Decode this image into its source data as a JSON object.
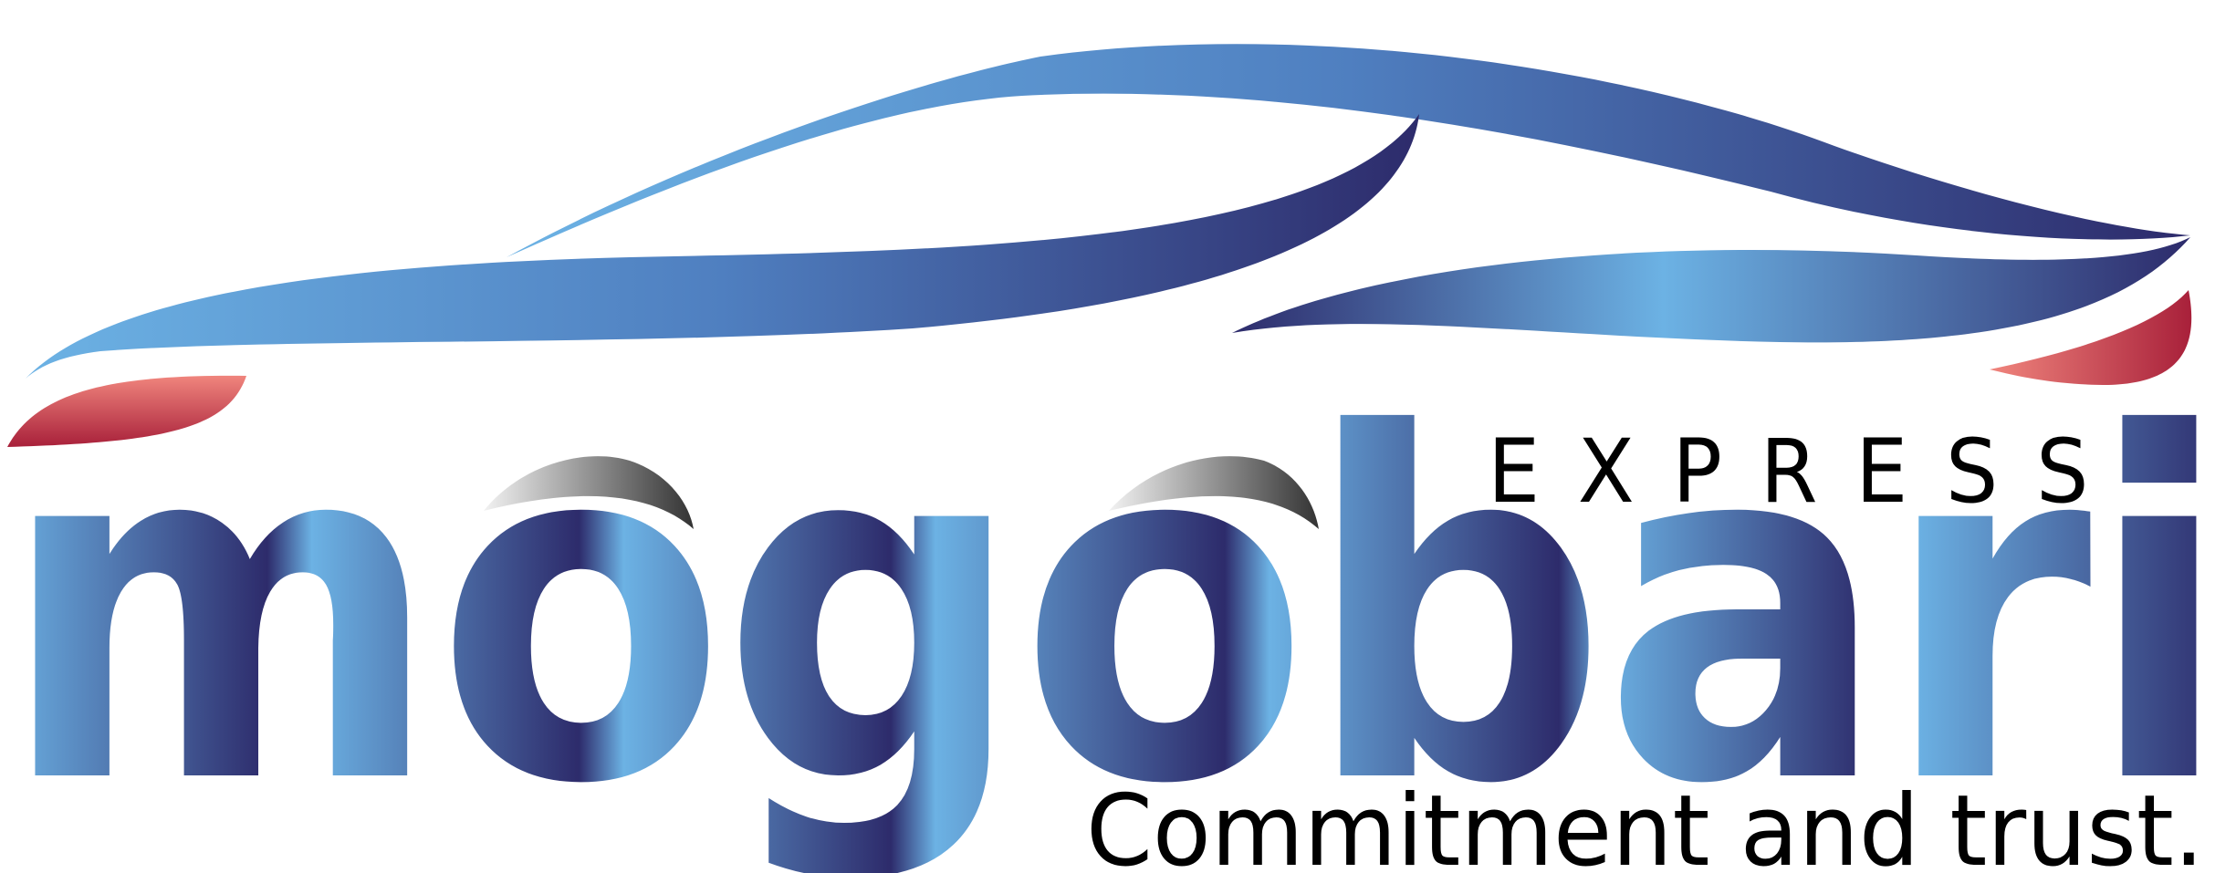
{
  "logo": {
    "brand": "mogobari",
    "sub_brand": "EXPRESS",
    "tagline": "Commitment and trust.",
    "car_icon": "car-silhouette-icon",
    "colors": {
      "blue_light": "#6cb2e4",
      "blue_mid": "#4f7fc0",
      "blue_dark": "#2d2b6b",
      "red_light": "#f0857d",
      "red_dark": "#a8203a",
      "text_dark": "#000000",
      "gray_light": "#f2f2f2",
      "gray_dark": "#333333"
    }
  }
}
